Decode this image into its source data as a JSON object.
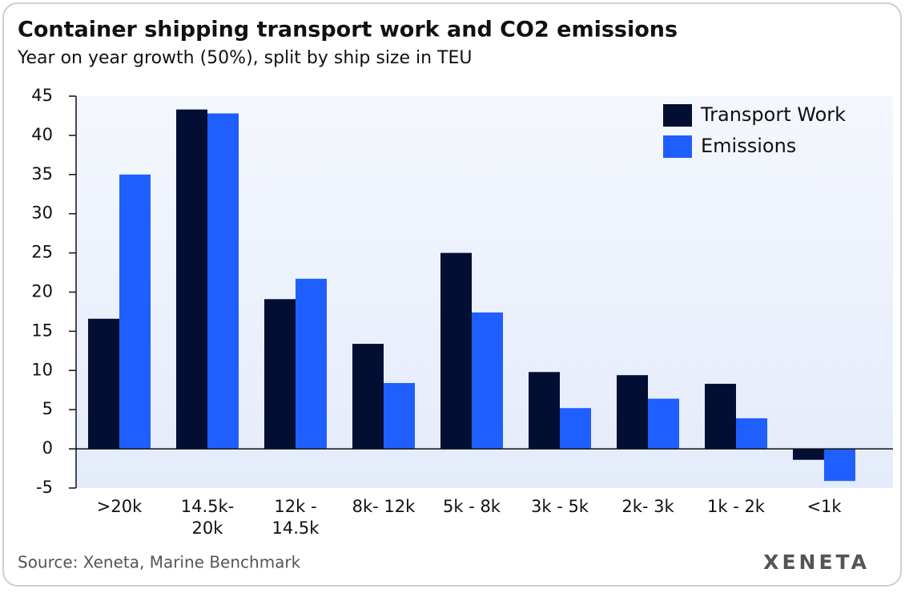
{
  "chart_data": {
    "type": "bar",
    "title": "Container shipping transport work and CO2 emissions",
    "subtitle": "Year on year growth (50%), split by ship size in TEU",
    "categories": [
      ">20k",
      "14.5k-\n20k",
      "12k -\n14.5k",
      "8k- 12k",
      "5k - 8k",
      "3k - 5k",
      "2k- 3k",
      "1k - 2k",
      "<1k"
    ],
    "series": [
      {
        "name": "Transport Work",
        "color": "#020f33",
        "values": [
          16.6,
          43.3,
          19.1,
          13.4,
          25.0,
          9.8,
          9.4,
          8.3,
          -1.4
        ]
      },
      {
        "name": "Emissions",
        "color": "#1f5fff",
        "values": [
          35.0,
          42.8,
          21.7,
          8.4,
          17.4,
          5.2,
          6.4,
          3.9,
          -4.1
        ]
      }
    ],
    "ylim": [
      -5,
      45
    ],
    "yticks": [
      -5,
      0,
      5,
      10,
      15,
      20,
      25,
      30,
      35,
      40,
      45
    ],
    "legend": "top-right",
    "source": "Source: Xeneta, Marine Benchmark",
    "brand": "XENETA"
  }
}
